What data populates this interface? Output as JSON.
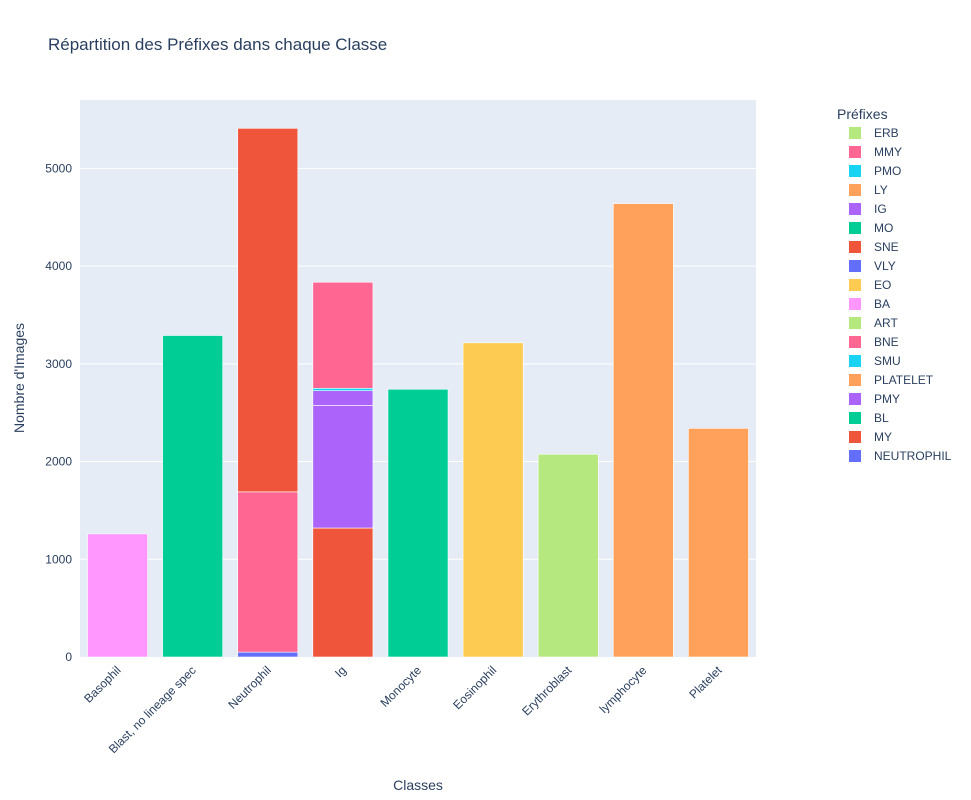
{
  "chart_data": {
    "type": "bar",
    "barmode": "stack",
    "title": "Répartition des Préfixes dans chaque Classe",
    "xlabel": "Classes",
    "ylabel": "Nombre d'Images",
    "ylim": [
      0,
      5700
    ],
    "yticks": [
      0,
      1000,
      2000,
      3000,
      4000,
      5000
    ],
    "grid": true,
    "legend_title": "Préfixes",
    "legend_position": "right",
    "categories": [
      "Basophil",
      "Blast, no lineage spec",
      "Neutrophil",
      "Ig",
      "Monocyte",
      "Eosinophil",
      "Erythroblast",
      "lymphocyte",
      "Platelet"
    ],
    "series": [
      {
        "name": "NEUTROPHIL",
        "color": "#636efa",
        "values": [
          0,
          0,
          50,
          0,
          0,
          0,
          0,
          0,
          0
        ]
      },
      {
        "name": "MY",
        "color": "#ef553b",
        "values": [
          0,
          0,
          0,
          1320,
          0,
          0,
          0,
          0,
          0
        ]
      },
      {
        "name": "BL",
        "color": "#00cc96",
        "values": [
          0,
          3290,
          0,
          0,
          0,
          0,
          0,
          0,
          0
        ]
      },
      {
        "name": "PMY",
        "color": "#ab63fa",
        "values": [
          0,
          0,
          0,
          1255,
          0,
          0,
          0,
          0,
          0
        ]
      },
      {
        "name": "PLATELET",
        "color": "#ffa15a",
        "values": [
          0,
          0,
          0,
          0,
          0,
          0,
          0,
          0,
          2340
        ]
      },
      {
        "name": "SMU",
        "color": "#19d3f3",
        "values": [
          0,
          0,
          0,
          0,
          0,
          0,
          0,
          0,
          0
        ]
      },
      {
        "name": "BNE",
        "color": "#ff6692",
        "values": [
          0,
          0,
          1640,
          0,
          0,
          0,
          0,
          0,
          0
        ]
      },
      {
        "name": "ART",
        "color": "#b6e880",
        "values": [
          0,
          0,
          0,
          0,
          0,
          0,
          0,
          0,
          0
        ]
      },
      {
        "name": "BA",
        "color": "#ff97ff",
        "values": [
          1260,
          0,
          0,
          0,
          0,
          0,
          0,
          0,
          0
        ]
      },
      {
        "name": "EO",
        "color": "#fecb52",
        "values": [
          0,
          0,
          0,
          0,
          0,
          3215,
          0,
          0,
          0
        ]
      },
      {
        "name": "VLY",
        "color": "#636efa",
        "values": [
          0,
          0,
          0,
          0,
          0,
          0,
          0,
          0,
          0
        ]
      },
      {
        "name": "SNE",
        "color": "#ef553b",
        "values": [
          0,
          0,
          3720,
          0,
          0,
          0,
          0,
          0,
          0
        ]
      },
      {
        "name": "MO",
        "color": "#00cc96",
        "values": [
          0,
          0,
          0,
          0,
          2740,
          0,
          0,
          0,
          0
        ]
      },
      {
        "name": "IG",
        "color": "#ab63fa",
        "values": [
          0,
          0,
          0,
          150,
          0,
          0,
          0,
          0,
          0
        ]
      },
      {
        "name": "LY",
        "color": "#ffa15a",
        "values": [
          0,
          0,
          0,
          0,
          0,
          0,
          0,
          4640,
          0
        ]
      },
      {
        "name": "PMO",
        "color": "#19d3f3",
        "values": [
          0,
          0,
          0,
          25,
          0,
          0,
          0,
          0,
          0
        ]
      },
      {
        "name": "MMY",
        "color": "#ff6692",
        "values": [
          0,
          0,
          0,
          1085,
          0,
          0,
          0,
          0,
          0
        ]
      },
      {
        "name": "ERB",
        "color": "#b6e880",
        "values": [
          0,
          0,
          0,
          0,
          0,
          0,
          2075,
          0,
          0
        ]
      }
    ]
  }
}
